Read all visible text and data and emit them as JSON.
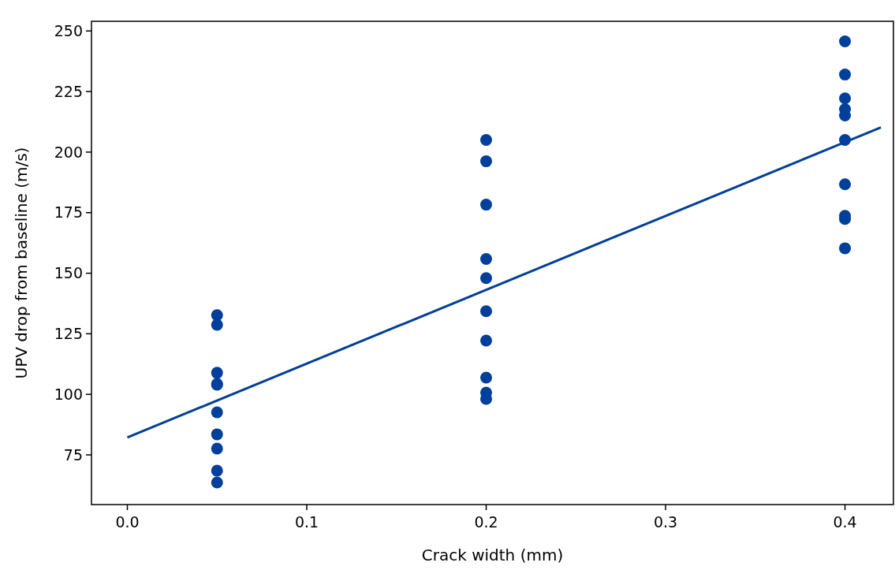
{
  "chart_data": {
    "type": "scatter",
    "xlabel": "Crack width (mm)",
    "ylabel": "UPV drop from baseline (m/s)",
    "xlim": [
      -0.02,
      0.427
    ],
    "xticks": [
      {
        "value": 0,
        "label": "0.0"
      },
      0.1,
      0.2,
      0.3,
      0.4
    ],
    "ylim": [
      54.5,
      254
    ],
    "yticks": [
      75,
      100,
      125,
      150,
      175,
      200,
      225,
      250
    ],
    "grid": false,
    "series": [
      {
        "color": "#003f9a",
        "marker": "circle",
        "x": [
          0.05,
          0.05,
          0.05,
          0.05,
          0.05,
          0.05,
          0.05,
          0.05,
          0.05,
          0.05,
          0.2,
          0.2,
          0.2,
          0.2,
          0.2,
          0.2,
          0.2,
          0.2,
          0.2,
          0.2,
          0.4,
          0.4,
          0.4,
          0.4,
          0.4,
          0.4,
          0.4,
          0.4,
          0.4,
          0.4
        ],
        "values": [
          132.7,
          128.7,
          108.9,
          104.3,
          104,
          92.6,
          83.5,
          77.6,
          68.5,
          63.6,
          205,
          196.2,
          178.3,
          155.9,
          148,
          134.3,
          122.2,
          106.9,
          100.7,
          98.1,
          245.7,
          232,
          222.2,
          217.7,
          215.1,
          205,
          186.7,
          173.7,
          172.4,
          160.3
        ]
      },
      {
        "type": "line",
        "color": "#003f9a",
        "x": [
          0,
          0.42
        ],
        "values": [
          82.2,
          210.2
        ],
        "line_style": "solid",
        "marker": "none"
      }
    ]
  }
}
